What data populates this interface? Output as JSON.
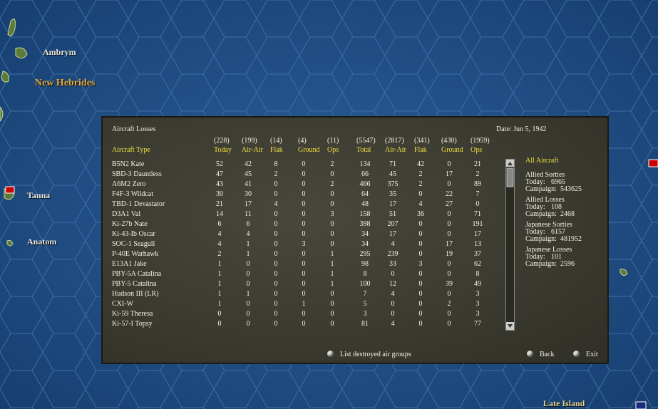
{
  "map": {
    "labels": [
      "Ambrym",
      "New Hebrides",
      "Tanna",
      "Anatom",
      "Late Island"
    ]
  },
  "panel": {
    "title": "Aircraft Losses",
    "date": "Date: Jun 5, 1942",
    "table": {
      "totals": [
        "(228)",
        "(199)",
        "(14)",
        "(4)",
        "(11)",
        "(5547)",
        "(2817)",
        "(341)",
        "(430)",
        "(1959)"
      ],
      "headers": [
        "Aircraft Type",
        "Today",
        "Air-Air",
        "Flak",
        "Ground",
        "Ops",
        "Total",
        "Air-Air",
        "Flak",
        "Ground",
        "Ops"
      ],
      "rows": [
        [
          "B5N2 Kate",
          52,
          42,
          8,
          0,
          2,
          134,
          71,
          42,
          0,
          21
        ],
        [
          "SBD-3 Dauntless",
          47,
          45,
          2,
          0,
          0,
          66,
          45,
          2,
          17,
          2
        ],
        [
          "A6M2 Zero",
          43,
          41,
          0,
          0,
          2,
          466,
          375,
          2,
          0,
          89
        ],
        [
          "F4F-3 Wildcat",
          30,
          30,
          0,
          0,
          0,
          64,
          35,
          0,
          22,
          7
        ],
        [
          "TBD-1 Devastator",
          21,
          17,
          4,
          0,
          0,
          48,
          17,
          4,
          27,
          0
        ],
        [
          "D3A1 Val",
          14,
          11,
          0,
          0,
          3,
          158,
          51,
          36,
          0,
          71
        ],
        [
          "Ki-27b Nate",
          6,
          6,
          0,
          0,
          0,
          398,
          207,
          0,
          0,
          191
        ],
        [
          "Ki-43-Ib Oscar",
          4,
          4,
          0,
          0,
          0,
          34,
          17,
          0,
          0,
          17
        ],
        [
          "SOC-1 Seagull",
          4,
          1,
          0,
          3,
          0,
          34,
          4,
          0,
          17,
          13
        ],
        [
          "P-40E Warhawk",
          2,
          1,
          0,
          0,
          1,
          295,
          239,
          0,
          19,
          37
        ],
        [
          "E13A1 Jake",
          1,
          0,
          0,
          0,
          1,
          98,
          33,
          3,
          0,
          62
        ],
        [
          "PBY-5A Catalina",
          1,
          0,
          0,
          0,
          1,
          8,
          0,
          0,
          0,
          8
        ],
        [
          "PBY-5 Catalina",
          1,
          0,
          0,
          0,
          1,
          100,
          12,
          0,
          39,
          49
        ],
        [
          "Hudson III (LR)",
          1,
          1,
          0,
          0,
          0,
          7,
          4,
          0,
          0,
          3
        ],
        [
          "CXI-W",
          1,
          0,
          0,
          1,
          0,
          5,
          0,
          0,
          2,
          3
        ],
        [
          "Ki-59 Theresa",
          0,
          0,
          0,
          0,
          0,
          3,
          0,
          0,
          0,
          3
        ],
        [
          "Ki-57-I Topsy",
          0,
          0,
          0,
          0,
          0,
          81,
          4,
          0,
          0,
          77
        ]
      ]
    },
    "summary": {
      "title": "All Aircraft",
      "sections": [
        {
          "title": "Allied Sorties",
          "today": {
            "label": "Today:",
            "value": 6965
          },
          "campaign": {
            "label": "Campaign:",
            "value": 543625
          }
        },
        {
          "title": "Allied Losses",
          "today": {
            "label": "Today:",
            "value": 108
          },
          "campaign": {
            "label": "Campaign:",
            "value": 2468
          }
        },
        {
          "title": "Japanese Sorties",
          "today": {
            "label": "Today:",
            "value": 6157
          },
          "campaign": {
            "label": "Campaign:",
            "value": 481952
          }
        },
        {
          "title": "Japanese Losses",
          "today": {
            "label": "Today:",
            "value": 101
          },
          "campaign": {
            "label": "Campaign:",
            "value": 2596
          }
        }
      ]
    },
    "buttons": [
      "List destroyed air groups",
      "Back",
      "Exit"
    ]
  }
}
